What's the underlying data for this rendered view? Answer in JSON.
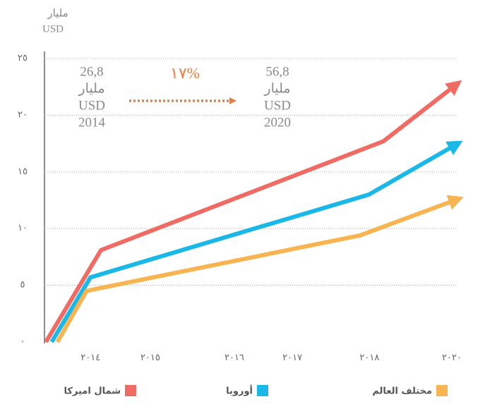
{
  "chart_data": {
    "type": "line",
    "y_unit_label": [
      "مليار",
      "USD"
    ],
    "xlim": [
      2013,
      2020
    ],
    "xticks": [
      {
        "value": 2013.77,
        "label": "٢٠١٤"
      },
      {
        "value": 2014.8,
        "label": "٢٠١٥"
      },
      {
        "value": 2016.25,
        "label": "٢٠١٦"
      },
      {
        "value": 2017.25,
        "label": "٢٠١٧"
      },
      {
        "value": 2018.58,
        "label": "٢٠١٨"
      },
      {
        "value": 2020,
        "label": "٢٠٢٠"
      }
    ],
    "ylim": [
      0,
      25
    ],
    "yticks": [
      {
        "value": 0,
        "label": "٠"
      },
      {
        "value": 5,
        "label": "٥"
      },
      {
        "value": 10,
        "label": "١٠"
      },
      {
        "value": 15,
        "label": "١٥"
      },
      {
        "value": 20,
        "label": "٢٠"
      },
      {
        "value": 25,
        "label": "٢٥"
      }
    ],
    "grid": true,
    "series": [
      {
        "name": "شمال امیرکا",
        "color": "#ef6b63",
        "x": [
          2013,
          2013.95,
          2018.82,
          2020
        ],
        "values": [
          0,
          8.1,
          17.7,
          22.4
        ]
      },
      {
        "name": "أوروبا",
        "color": "#1ab8e6",
        "x": [
          2013.1,
          2013.77,
          2018.57,
          2020
        ],
        "values": [
          0,
          5.7,
          13.0,
          17.2
        ]
      },
      {
        "name": "مختلف العالم",
        "color": "#f8b451",
        "x": [
          2013.2,
          2013.7,
          2018.42,
          2020
        ],
        "values": [
          0,
          4.5,
          9.4,
          12.4
        ]
      }
    ],
    "annotations": [
      {
        "lines": [
          "26,8",
          "مليار",
          "USD",
          "2014"
        ]
      },
      {
        "lines": [
          "56,8",
          "مليار",
          "USD",
          "2020"
        ]
      }
    ],
    "growth_label": "١٧%",
    "growth_color": "#f07c3a"
  }
}
